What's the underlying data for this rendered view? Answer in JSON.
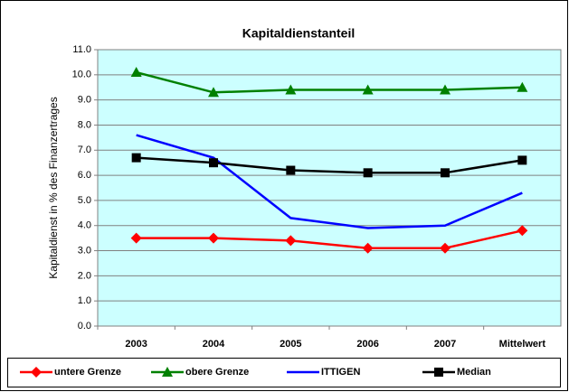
{
  "chart_data": {
    "type": "line",
    "title": "Kapitaldienstanteil",
    "y_label": "Kapitaldienst in % des Finanzertrages",
    "categories": [
      "2003",
      "2004",
      "2005",
      "2006",
      "2007",
      "Mittelwert"
    ],
    "series": [
      {
        "name": "untere Grenze",
        "color": "#ff0000",
        "marker": "diamond",
        "values": [
          3.5,
          3.5,
          3.4,
          3.1,
          3.1,
          3.8
        ]
      },
      {
        "name": "obere Grenze",
        "color": "#008000",
        "marker": "triangle",
        "values": [
          10.1,
          9.3,
          9.4,
          9.4,
          9.4,
          9.5
        ]
      },
      {
        "name": "ITTIGEN",
        "color": "#0000ff",
        "marker": "none",
        "values": [
          7.6,
          6.7,
          4.3,
          3.9,
          4.0,
          5.3
        ]
      },
      {
        "name": "Median",
        "color": "#000000",
        "marker": "square",
        "values": [
          6.7,
          6.5,
          6.2,
          6.1,
          6.1,
          6.6
        ]
      }
    ],
    "ylim": [
      0,
      11
    ],
    "yticks": [
      {
        "value": 0,
        "label": "0.0"
      },
      {
        "value": 1,
        "label": "1.0"
      },
      {
        "value": 2,
        "label": "2.0"
      },
      {
        "value": 3,
        "label": "3.0"
      },
      {
        "value": 4,
        "label": "4.0"
      },
      {
        "value": 5,
        "label": "5.0"
      },
      {
        "value": 6,
        "label": "6.0"
      },
      {
        "value": 7,
        "label": "7.0"
      },
      {
        "value": 8,
        "label": "8.0"
      },
      {
        "value": 9,
        "label": "9.0"
      },
      {
        "value": 10,
        "label": "10.0"
      },
      {
        "value": 11,
        "label": "11.0"
      }
    ],
    "grid": true,
    "plot_background": "#ccffff",
    "legend": "bottom"
  }
}
